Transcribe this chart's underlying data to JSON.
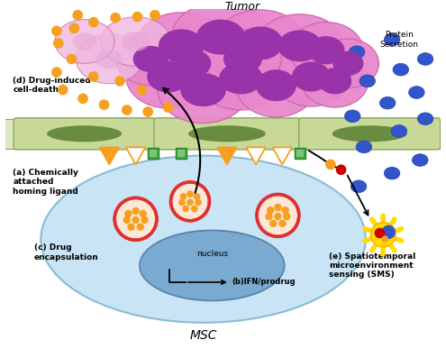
{
  "msc_cell_color": "#c8e4f5",
  "msc_cell_edge": "#8abcd4",
  "nucleus_color": "#7aaacf",
  "nucleus_edge": "#5580aa",
  "endosome_outer_color": "#e03030",
  "endosome_inner_color": "#fde8d8",
  "endosome_dot_color": "#f5a020",
  "vessel_bg_color": "#dde8c0",
  "vessel_cell_color": "#c8d898",
  "vessel_cell_edge": "#88aa55",
  "vessel_nucleus_color": "#6a8c40",
  "tumor_cell_color": "#e888cc",
  "tumor_cell_edge": "#cc66aa",
  "tumor_nucleus_color": "#9933aa",
  "dead_cell_color": "#f0b8e0",
  "dead_dot_color": "#f5a020",
  "protein_dot_color": "#3355cc",
  "protein_dot_edge": "#2244aa",
  "triangle_filled_color": "#f5a020",
  "triangle_empty_fill": "#ffffff",
  "triangle_edge_color": "#f5a020",
  "receptor_color": "#44aa44",
  "receptor_edge": "#228822",
  "label_a": "(a) Chemically\nattached\nhoming ligand",
  "label_b": "(b)IFN/prodrug",
  "label_c": "(c) Drug\nencapsulation",
  "label_d": "(d) Drug-induced\ncell-death",
  "label_e": "(e) Spatiotemporal\nmicroenvironment\nsensing (SMS)",
  "label_nucleus": "nucleus",
  "label_tumor": "Tumor",
  "label_protein": "Protein\nSecretion",
  "label_msc": "MSC",
  "star_color": "#ffdd00",
  "star_edge": "#ffaa00",
  "sensor_orange": "#f5a020",
  "sensor_red": "#cc0000",
  "sensor_blue": "#3355cc"
}
